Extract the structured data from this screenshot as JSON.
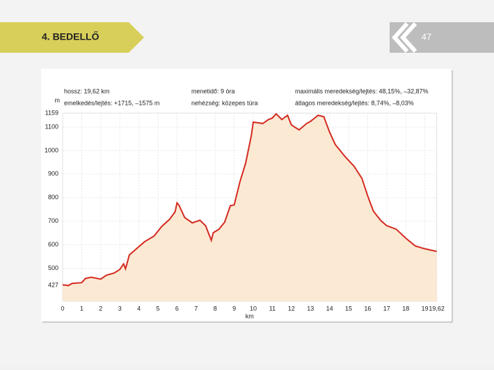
{
  "header": {
    "title": "4. BEDELLŐ",
    "page": "47"
  },
  "chart_data": {
    "type": "area",
    "info": [
      "hossz: 19,62 km",
      "emelkedés/lejtés: +1715, –1575 m",
      "menetidő: 9 óra",
      "nehézség: közepes túra",
      "maximális meredekség/lejtés: 48,15%, –32,87%",
      "átlagos meredekség/lejtés: 8,74%, –8,03%"
    ],
    "ylabel": "m",
    "xlabel": "km",
    "x": [
      0,
      0.3,
      0.5,
      1.0,
      1.2,
      1.5,
      2.0,
      2.3,
      2.7,
      3.0,
      3.2,
      3.3,
      3.5,
      3.8,
      4.0,
      4.3,
      4.8,
      5.2,
      5.6,
      5.9,
      6.0,
      6.1,
      6.4,
      6.8,
      7.2,
      7.5,
      7.8,
      7.9,
      8.2,
      8.5,
      8.8,
      9.0,
      9.3,
      9.6,
      9.9,
      10.0,
      10.5,
      10.8,
      11.0,
      11.2,
      11.5,
      11.8,
      12.0,
      12.4,
      12.8,
      13.0,
      13.4,
      13.7,
      14.0,
      14.3,
      14.8,
      15.3,
      15.7,
      16.0,
      16.3,
      16.7,
      17.0,
      17.5,
      18.0,
      18.5,
      19.0,
      19.62
    ],
    "values": [
      430,
      427,
      436,
      439,
      457,
      462,
      454,
      471,
      480,
      495,
      519,
      498,
      557,
      578,
      592,
      613,
      637,
      678,
      707,
      740,
      778,
      769,
      716,
      693,
      704,
      681,
      619,
      651,
      666,
      696,
      766,
      769,
      867,
      946,
      1065,
      1121,
      1115,
      1132,
      1138,
      1156,
      1132,
      1150,
      1109,
      1088,
      1115,
      1124,
      1150,
      1144,
      1079,
      1026,
      976,
      932,
      882,
      808,
      743,
      702,
      681,
      666,
      628,
      595,
      583,
      572
    ],
    "line_color": "#d42a1f",
    "fill_color": "#fbe9d4",
    "xlim": [
      0,
      19.62
    ],
    "ylim": [
      360,
      1159
    ],
    "xticks": [
      0,
      1,
      2,
      3,
      4,
      5,
      6,
      7,
      8,
      9,
      10,
      11,
      12,
      13,
      14,
      15,
      16,
      17,
      18,
      19,
      {
        "value": 19.62,
        "label": "19,62"
      }
    ],
    "yticks": [
      427,
      500,
      600,
      700,
      800,
      900,
      1000,
      1100,
      1159
    ],
    "grid": true
  }
}
